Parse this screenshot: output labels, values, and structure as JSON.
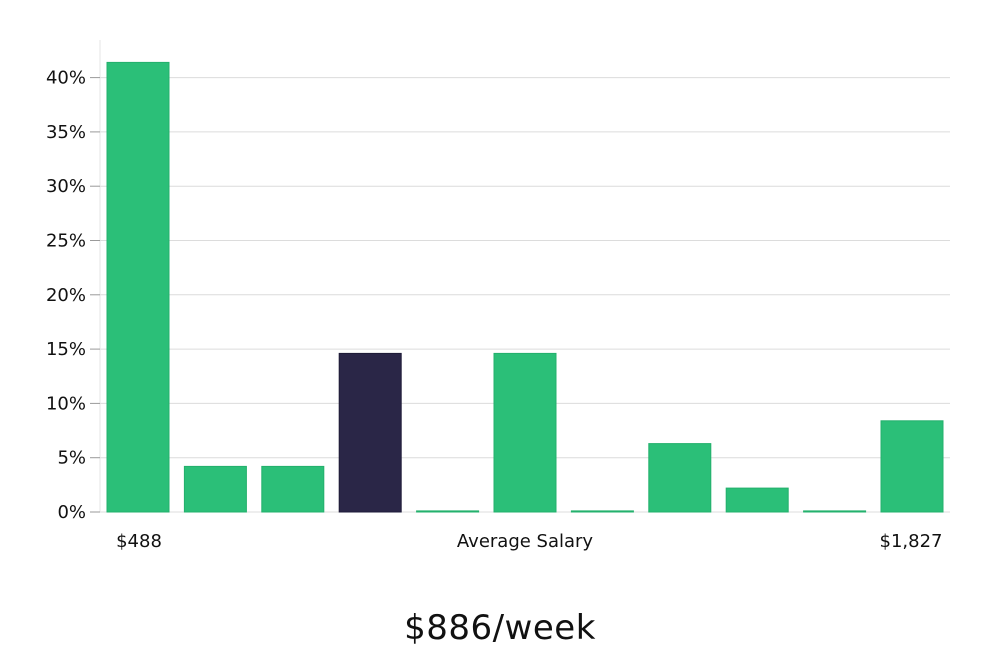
{
  "chart_data": {
    "type": "bar",
    "x_min_label": "$488",
    "x_center_label": "Average Salary",
    "x_max_label": "$1,827",
    "values": [
      41.4,
      4.2,
      4.2,
      14.6,
      0.1,
      14.6,
      0.1,
      6.3,
      2.2,
      0.1,
      8.4
    ],
    "highlight_index": 3,
    "ylim": [
      0,
      45
    ],
    "yticks": [
      0,
      5,
      10,
      15,
      20,
      25,
      30,
      35,
      40
    ],
    "ytick_labels": [
      "0%",
      "5%",
      "10%",
      "15%",
      "20%",
      "25%",
      "30%",
      "35%",
      "40%"
    ],
    "grid": true,
    "colors": {
      "bar": "#2bbf78",
      "bar_stroke": "#23b06c",
      "highlight": "#2a2647",
      "highlight_stroke": "#1e1b38"
    }
  },
  "footer": {
    "value": "$886/week"
  }
}
